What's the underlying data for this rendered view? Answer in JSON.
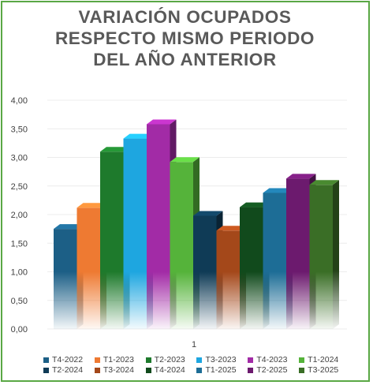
{
  "chart_data": {
    "type": "bar",
    "title_lines": [
      "VARIACIÓN OCUPADOS",
      "RESPECTO MISMO PERIODO",
      "DEL AÑO ANTERIOR"
    ],
    "categories": [
      "1"
    ],
    "y_ticks": [
      "0,00",
      "0,50",
      "1,00",
      "1,50",
      "2,00",
      "2,50",
      "3,00",
      "3,50",
      "4,00"
    ],
    "ylim": [
      0,
      4
    ],
    "grid": true,
    "legend_position": "bottom",
    "series": [
      {
        "name": "T4-2022",
        "value": 1.75,
        "color": "#1c5f86"
      },
      {
        "name": "T1-2023",
        "value": 2.12,
        "color": "#ee7a32"
      },
      {
        "name": "T2-2023",
        "value": 3.1,
        "color": "#1e7a2c"
      },
      {
        "name": "T3-2023",
        "value": 3.33,
        "color": "#1ea6e0"
      },
      {
        "name": "T4-2023",
        "value": 3.58,
        "color": "#a22ba6"
      },
      {
        "name": "T1-2024",
        "value": 2.92,
        "color": "#55b33a"
      },
      {
        "name": "T2-2024",
        "value": 1.98,
        "color": "#0f3b56"
      },
      {
        "name": "T3-2024",
        "value": 1.72,
        "color": "#a4481a"
      },
      {
        "name": "T4-2024",
        "value": 2.13,
        "color": "#114a1c"
      },
      {
        "name": "T1-2025",
        "value": 2.38,
        "color": "#1d6d96"
      },
      {
        "name": "T2-2025",
        "value": 2.63,
        "color": "#6c1a6e"
      },
      {
        "name": "T3-2025",
        "value": 2.52,
        "color": "#3a6e26"
      }
    ]
  }
}
